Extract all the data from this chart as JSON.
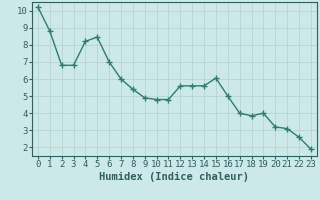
{
  "x": [
    0,
    1,
    2,
    3,
    4,
    5,
    6,
    7,
    8,
    9,
    10,
    11,
    12,
    13,
    14,
    15,
    16,
    17,
    18,
    19,
    20,
    21,
    22,
    23
  ],
  "y": [
    10.2,
    8.8,
    6.8,
    6.8,
    8.2,
    8.45,
    7.0,
    6.0,
    5.4,
    4.9,
    4.8,
    4.8,
    5.6,
    5.6,
    5.6,
    6.05,
    5.0,
    4.0,
    3.85,
    4.0,
    3.2,
    3.1,
    2.6,
    1.9
  ],
  "line_color": "#2e7d6e",
  "marker_color": "#2e7d6e",
  "bg_color": "#cce8e8",
  "grid_color": "#b8d8d0",
  "axis_color": "#2e6060",
  "xlabel": "Humidex (Indice chaleur)",
  "xlim": [
    -0.5,
    23.5
  ],
  "ylim": [
    1.5,
    10.5
  ],
  "yticks": [
    2,
    3,
    4,
    5,
    6,
    7,
    8,
    9,
    10
  ],
  "xticks": [
    0,
    1,
    2,
    3,
    4,
    5,
    6,
    7,
    8,
    9,
    10,
    11,
    12,
    13,
    14,
    15,
    16,
    17,
    18,
    19,
    20,
    21,
    22,
    23
  ],
  "tick_fontsize": 6.5,
  "label_fontsize": 7.5,
  "line_width": 1.0,
  "marker_size": 3.0
}
